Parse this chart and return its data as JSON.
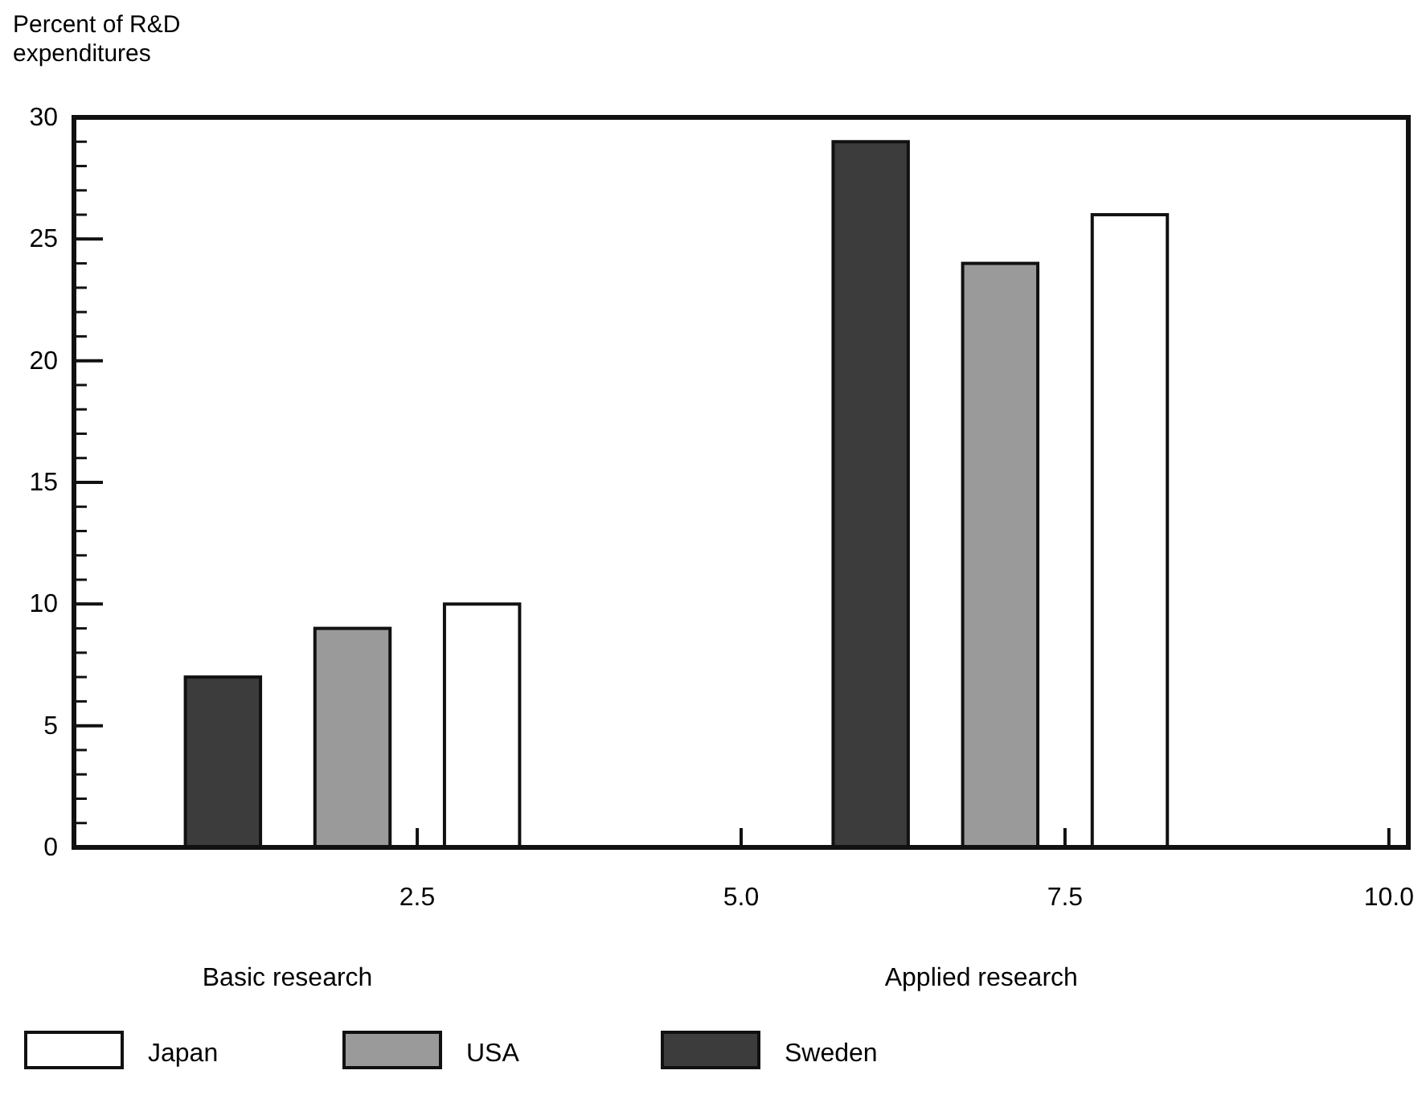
{
  "chart_data": {
    "type": "bar",
    "ylabel": "Percent of R&D expenditures",
    "series": [
      {
        "name": "Sweden",
        "color": "#3c3c3c",
        "x": [
          1,
          6
        ],
        "values": [
          7,
          29
        ]
      },
      {
        "name": "USA",
        "color": "#9a9a9a",
        "x": [
          2,
          7
        ],
        "values": [
          9,
          24
        ]
      },
      {
        "name": "Japan",
        "color": "#ffffff",
        "x": [
          3,
          8
        ],
        "values": [
          10,
          26
        ]
      }
    ],
    "xlim": [
      -0.15,
      10.15
    ],
    "xticks": [
      {
        "value": 2.5,
        "label": "2.5"
      },
      {
        "value": 5,
        "label": "5.0"
      },
      {
        "value": 7.5,
        "label": "7.5"
      },
      {
        "value": 10,
        "label": "10.0"
      }
    ],
    "ylim": [
      0,
      30
    ],
    "yticks": [
      0,
      5,
      10,
      15,
      20,
      25,
      30
    ],
    "annotations": [
      "Basic research",
      "Applied research"
    ],
    "legend": "bottom",
    "grid": false
  }
}
